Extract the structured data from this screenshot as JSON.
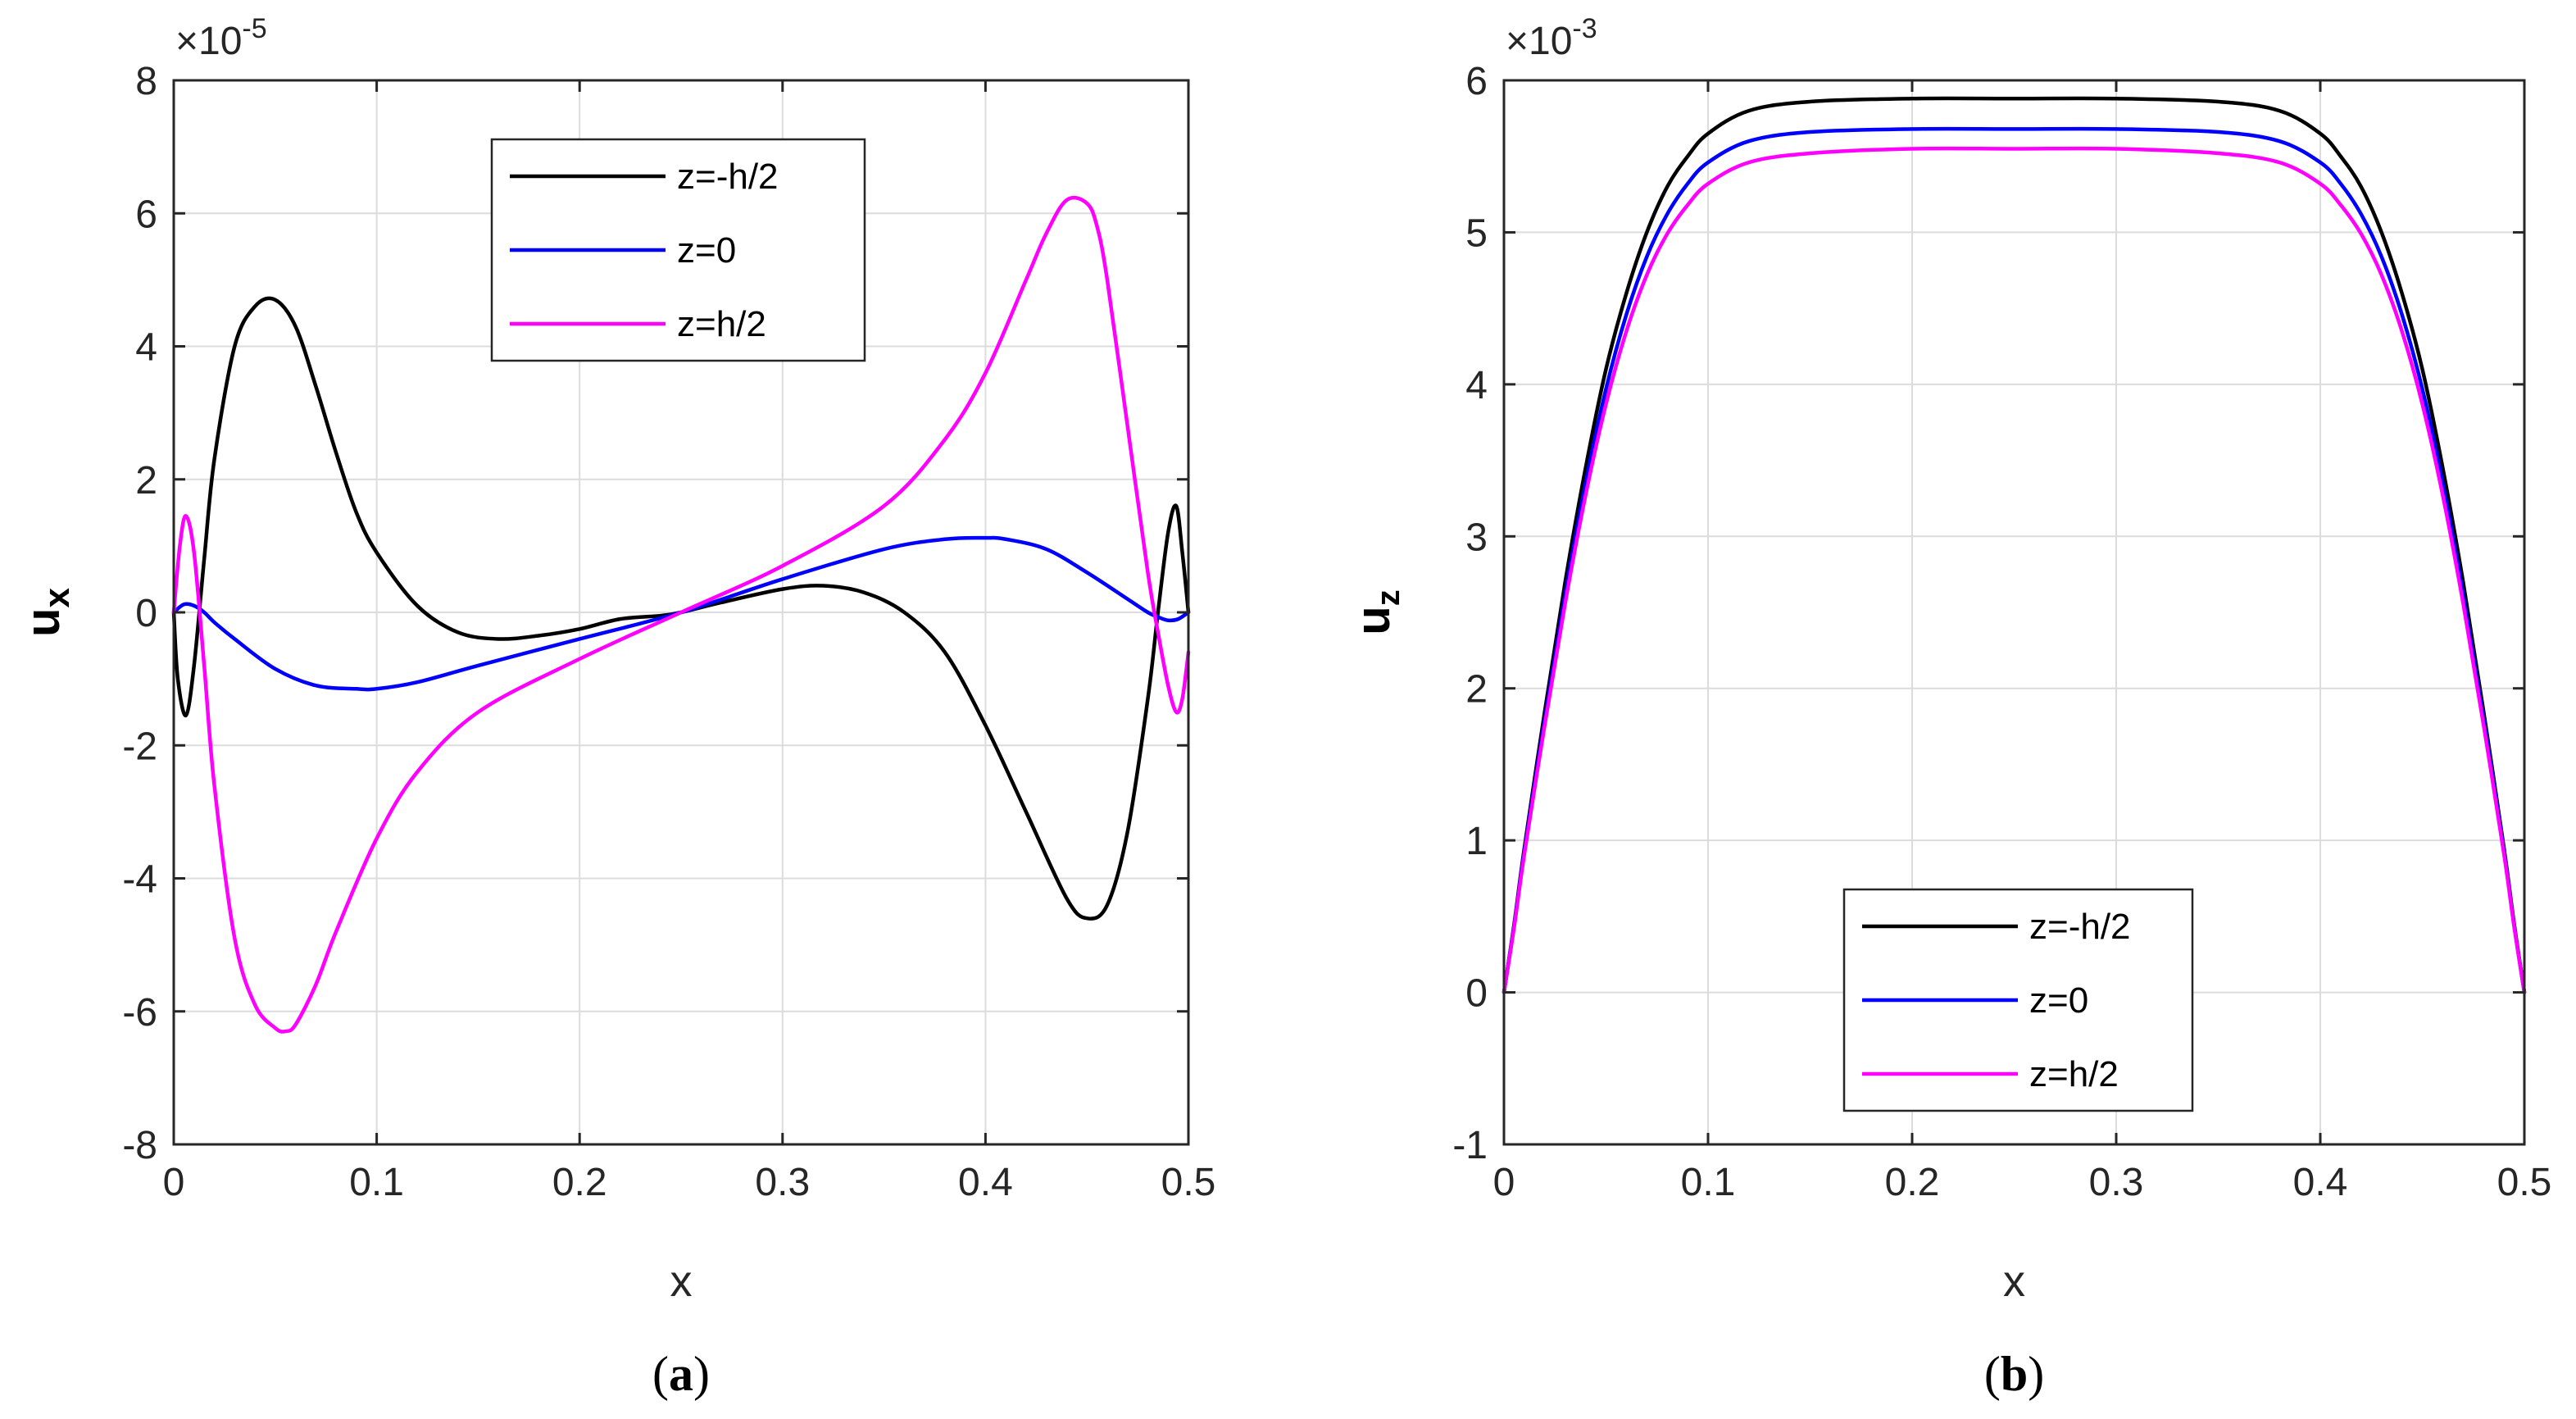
{
  "chart_data": [
    {
      "type": "line",
      "panel_label": "a",
      "xlabel": "x",
      "ylabel_main": "u",
      "ylabel_sub": "x",
      "exponent_label": "×10",
      "exponent_power": "-5",
      "xlim": [
        0,
        0.5
      ],
      "ylim": [
        -8,
        8
      ],
      "xticks": [
        0,
        0.1,
        0.2,
        0.3,
        0.4,
        0.5
      ],
      "xtick_labels": [
        "0",
        "0.1",
        "0.2",
        "0.3",
        "0.4",
        "0.5"
      ],
      "yticks": [
        -8,
        -6,
        -4,
        -2,
        0,
        2,
        4,
        6,
        8
      ],
      "ytick_labels": [
        "-8",
        "-6",
        "-4",
        "-2",
        "0",
        "2",
        "4",
        "6",
        "8"
      ],
      "grid": true,
      "legend_position": "top-center",
      "series": [
        {
          "name": "z=-h/2",
          "color": "#000000",
          "x": [
            0,
            0.002,
            0.006,
            0.01,
            0.015,
            0.02,
            0.03,
            0.04,
            0.05,
            0.06,
            0.07,
            0.08,
            0.09,
            0.1,
            0.12,
            0.14,
            0.16,
            0.18,
            0.2,
            0.22,
            0.24,
            0.25,
            0.27,
            0.3,
            0.32,
            0.34,
            0.36,
            0.38,
            0.4,
            0.42,
            0.44,
            0.45,
            0.46,
            0.47,
            0.48,
            0.485,
            0.49,
            0.494,
            0.497,
            0.5
          ],
          "y": [
            0,
            -1.0,
            -1.55,
            -0.8,
            0.8,
            2.3,
            4.0,
            4.6,
            4.7,
            4.3,
            3.4,
            2.4,
            1.5,
            0.9,
            0.1,
            -0.3,
            -0.4,
            -0.35,
            -0.25,
            -0.1,
            -0.05,
            0,
            0.15,
            0.35,
            0.4,
            0.3,
            0.0,
            -0.6,
            -1.7,
            -3.0,
            -4.3,
            -4.6,
            -4.4,
            -3.3,
            -1.3,
            0.0,
            1.2,
            1.6,
            0.9,
            0
          ]
        },
        {
          "name": "z=0",
          "color": "#0000ff",
          "x": [
            0,
            0.005,
            0.01,
            0.015,
            0.02,
            0.03,
            0.05,
            0.07,
            0.09,
            0.1,
            0.12,
            0.15,
            0.2,
            0.25,
            0.3,
            0.35,
            0.38,
            0.4,
            0.41,
            0.43,
            0.45,
            0.47,
            0.48,
            0.485,
            0.49,
            0.495,
            0.5
          ],
          "y": [
            0,
            0.12,
            0.1,
            0.0,
            -0.15,
            -0.4,
            -0.85,
            -1.1,
            -1.15,
            -1.15,
            -1.05,
            -0.8,
            -0.4,
            0,
            0.5,
            0.95,
            1.1,
            1.12,
            1.1,
            0.95,
            0.6,
            0.2,
            0.0,
            -0.07,
            -0.12,
            -0.1,
            0
          ]
        },
        {
          "name": "z=h/2",
          "color": "#ff00ff",
          "x": [
            0,
            0.003,
            0.006,
            0.01,
            0.015,
            0.02,
            0.03,
            0.04,
            0.05,
            0.055,
            0.06,
            0.07,
            0.08,
            0.1,
            0.12,
            0.15,
            0.2,
            0.25,
            0.3,
            0.35,
            0.38,
            0.4,
            0.42,
            0.43,
            0.44,
            0.45,
            0.455,
            0.46,
            0.47,
            0.48,
            0.485,
            0.49,
            0.494,
            0.497,
            0.5
          ],
          "y": [
            0,
            1.0,
            1.45,
            0.9,
            -0.8,
            -2.6,
            -4.9,
            -5.9,
            -6.25,
            -6.3,
            -6.2,
            -5.6,
            -4.8,
            -3.4,
            -2.4,
            -1.5,
            -0.7,
            0,
            0.7,
            1.6,
            2.6,
            3.6,
            5.0,
            5.7,
            6.2,
            6.15,
            5.8,
            5.0,
            2.8,
            0.6,
            -0.3,
            -1.1,
            -1.5,
            -1.3,
            -0.6
          ]
        }
      ]
    },
    {
      "type": "line",
      "panel_label": "b",
      "xlabel": "x",
      "ylabel_main": "u",
      "ylabel_sub": "z",
      "exponent_label": "×10",
      "exponent_power": "-3",
      "xlim": [
        0,
        0.5
      ],
      "ylim": [
        -1,
        6
      ],
      "xticks": [
        0,
        0.1,
        0.2,
        0.3,
        0.4,
        0.5
      ],
      "xtick_labels": [
        "0",
        "0.1",
        "0.2",
        "0.3",
        "0.4",
        "0.5"
      ],
      "yticks": [
        -1,
        0,
        1,
        2,
        3,
        4,
        5,
        6
      ],
      "ytick_labels": [
        "-1",
        "0",
        "1",
        "2",
        "3",
        "4",
        "5",
        "6"
      ],
      "grid": true,
      "legend_position": "bottom-center",
      "series": [
        {
          "name": "z=-h/2",
          "color": "#000000",
          "x": [
            0,
            0.005,
            0.01,
            0.02,
            0.03,
            0.04,
            0.05,
            0.06,
            0.07,
            0.08,
            0.09,
            0.1,
            0.12,
            0.15,
            0.2,
            0.25,
            0.3,
            0.35,
            0.38,
            0.4,
            0.41,
            0.42,
            0.43,
            0.44,
            0.45,
            0.46,
            0.47,
            0.48,
            0.49,
            0.495,
            0.5
          ],
          "y": [
            0,
            0.45,
            0.95,
            1.85,
            2.7,
            3.45,
            4.1,
            4.6,
            5.0,
            5.3,
            5.5,
            5.65,
            5.8,
            5.86,
            5.88,
            5.88,
            5.88,
            5.86,
            5.8,
            5.65,
            5.5,
            5.3,
            5.0,
            4.6,
            4.1,
            3.45,
            2.7,
            1.85,
            0.95,
            0.45,
            0
          ]
        },
        {
          "name": "z=0",
          "color": "#0000ff",
          "x": [
            0,
            0.005,
            0.01,
            0.02,
            0.03,
            0.04,
            0.05,
            0.06,
            0.07,
            0.08,
            0.09,
            0.1,
            0.12,
            0.15,
            0.2,
            0.25,
            0.3,
            0.35,
            0.38,
            0.4,
            0.41,
            0.42,
            0.43,
            0.44,
            0.45,
            0.46,
            0.47,
            0.48,
            0.49,
            0.495,
            0.5
          ],
          "y": [
            0,
            0.44,
            0.93,
            1.8,
            2.62,
            3.35,
            3.97,
            4.46,
            4.84,
            5.12,
            5.32,
            5.46,
            5.6,
            5.66,
            5.68,
            5.68,
            5.68,
            5.66,
            5.6,
            5.46,
            5.32,
            5.12,
            4.84,
            4.46,
            3.97,
            3.35,
            2.62,
            1.8,
            0.93,
            0.44,
            0
          ]
        },
        {
          "name": "z=h/2",
          "color": "#ff00ff",
          "x": [
            0,
            0.005,
            0.01,
            0.02,
            0.03,
            0.04,
            0.05,
            0.06,
            0.07,
            0.08,
            0.09,
            0.1,
            0.12,
            0.15,
            0.2,
            0.25,
            0.3,
            0.35,
            0.38,
            0.4,
            0.41,
            0.42,
            0.43,
            0.44,
            0.45,
            0.46,
            0.47,
            0.48,
            0.49,
            0.495,
            0.5
          ],
          "y": [
            0,
            0.43,
            0.91,
            1.76,
            2.56,
            3.27,
            3.87,
            4.35,
            4.72,
            4.99,
            5.18,
            5.32,
            5.46,
            5.52,
            5.55,
            5.55,
            5.55,
            5.52,
            5.46,
            5.32,
            5.18,
            4.99,
            4.72,
            4.35,
            3.87,
            3.27,
            2.56,
            1.76,
            0.91,
            0.43,
            0
          ]
        }
      ]
    }
  ]
}
